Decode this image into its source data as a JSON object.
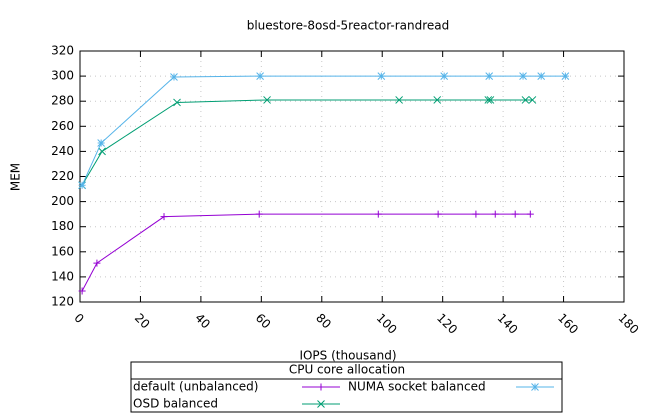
{
  "chart_data": {
    "type": "line",
    "title": "bluestore-8osd-5reactor-randread",
    "x_label": "IOPS (thousand)",
    "y_label": "MEM",
    "xlim": [
      0,
      180
    ],
    "xticks": [
      0,
      20,
      40,
      60,
      80,
      100,
      120,
      140,
      160,
      180
    ],
    "ylim": [
      120,
      320
    ],
    "yticks": [
      120,
      140,
      160,
      180,
      200,
      220,
      240,
      260,
      280,
      300,
      320
    ],
    "grid": true,
    "legend_title": "CPU core allocation",
    "legend_position": "bottom",
    "series": [
      {
        "name": "default (unbalanced)",
        "color": "#9400d3",
        "marker": "plus",
        "x": [
          0.7,
          5.6,
          27.8,
          59.3,
          98.7,
          118.5,
          131,
          137.4,
          144,
          149
        ],
        "values": [
          128.8,
          151,
          188,
          190,
          190,
          190,
          190,
          190,
          190,
          190
        ]
      },
      {
        "name": "OSD balanced",
        "color": "#009e73",
        "marker": "cross",
        "x": [
          0.7,
          7.3,
          32.1,
          61.9,
          105.6,
          118.2,
          135.1,
          135.8,
          147.4,
          149.7
        ],
        "values": [
          213,
          240,
          279,
          281,
          281,
          281,
          281,
          281,
          281,
          281
        ]
      },
      {
        "name": "NUMA socket balanced",
        "color": "#56b4e9",
        "marker": "star",
        "x": [
          0.7,
          7,
          31.1,
          59.6,
          99.7,
          120.5,
          135.4,
          146.6,
          152.6,
          160.6
        ],
        "values": [
          213,
          246.7,
          299.3,
          300,
          300,
          300,
          300,
          300,
          300,
          300
        ]
      }
    ]
  }
}
